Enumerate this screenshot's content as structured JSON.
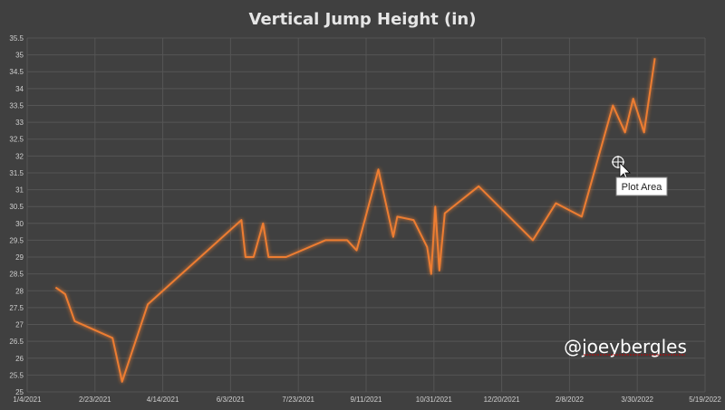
{
  "chart_data": {
    "type": "line",
    "title": "Vertical Jump Height (in)",
    "xlabel": "",
    "ylabel": "",
    "x_tick_labels": [
      "1/4/2021",
      "2/23/2021",
      "4/14/2021",
      "6/3/2021",
      "7/23/2021",
      "9/11/2021",
      "10/31/2021",
      "12/20/2021",
      "2/8/2022",
      "3/30/2022",
      "5/19/2022"
    ],
    "xlim": [
      "2021-01-04",
      "2022-05-19"
    ],
    "ylim": [
      25,
      35.5
    ],
    "y_ticks": [
      25,
      25.5,
      26,
      26.5,
      27,
      27.5,
      28,
      28.5,
      29,
      29.5,
      30,
      30.5,
      31,
      31.5,
      32,
      32.5,
      33,
      33.5,
      34,
      34.5,
      35,
      35.5
    ],
    "grid": true,
    "legend": "none",
    "series": [
      {
        "color": "#ed7d31",
        "points": [
          {
            "x": "2021-01-25",
            "y": 28.1
          },
          {
            "x": "2021-02-01",
            "y": 27.9
          },
          {
            "x": "2021-02-08",
            "y": 27.1
          },
          {
            "x": "2021-03-08",
            "y": 26.6
          },
          {
            "x": "2021-03-15",
            "y": 25.3
          },
          {
            "x": "2021-04-03",
            "y": 27.6
          },
          {
            "x": "2021-06-11",
            "y": 30.1
          },
          {
            "x": "2021-06-14",
            "y": 29.0
          },
          {
            "x": "2021-06-20",
            "y": 29.0
          },
          {
            "x": "2021-06-27",
            "y": 30.0
          },
          {
            "x": "2021-07-01",
            "y": 29.0
          },
          {
            "x": "2021-07-14",
            "y": 29.0
          },
          {
            "x": "2021-08-12",
            "y": 29.5
          },
          {
            "x": "2021-08-28",
            "y": 29.5
          },
          {
            "x": "2021-09-04",
            "y": 29.2
          },
          {
            "x": "2021-09-20",
            "y": 31.6
          },
          {
            "x": "2021-10-01",
            "y": 29.6
          },
          {
            "x": "2021-10-04",
            "y": 30.2
          },
          {
            "x": "2021-10-16",
            "y": 30.1
          },
          {
            "x": "2021-10-26",
            "y": 29.3
          },
          {
            "x": "2021-10-29",
            "y": 28.5
          },
          {
            "x": "2021-11-01",
            "y": 30.5
          },
          {
            "x": "2021-11-04",
            "y": 28.6
          },
          {
            "x": "2021-11-08",
            "y": 30.3
          },
          {
            "x": "2021-12-03",
            "y": 31.1
          },
          {
            "x": "2022-01-12",
            "y": 29.5
          },
          {
            "x": "2022-01-29",
            "y": 30.6
          },
          {
            "x": "2022-02-17",
            "y": 30.2
          },
          {
            "x": "2022-03-12",
            "y": 33.5
          },
          {
            "x": "2022-03-21",
            "y": 32.7
          },
          {
            "x": "2022-03-27",
            "y": 33.7
          },
          {
            "x": "2022-04-04",
            "y": 32.7
          },
          {
            "x": "2022-04-12",
            "y": 34.9
          }
        ]
      }
    ]
  },
  "watermark": "@joeybergles",
  "tooltip": "Plot Area",
  "colors": {
    "background": "#404040",
    "line": "#ed7d31",
    "grid": "#555555",
    "text": "#cfcfcf"
  }
}
